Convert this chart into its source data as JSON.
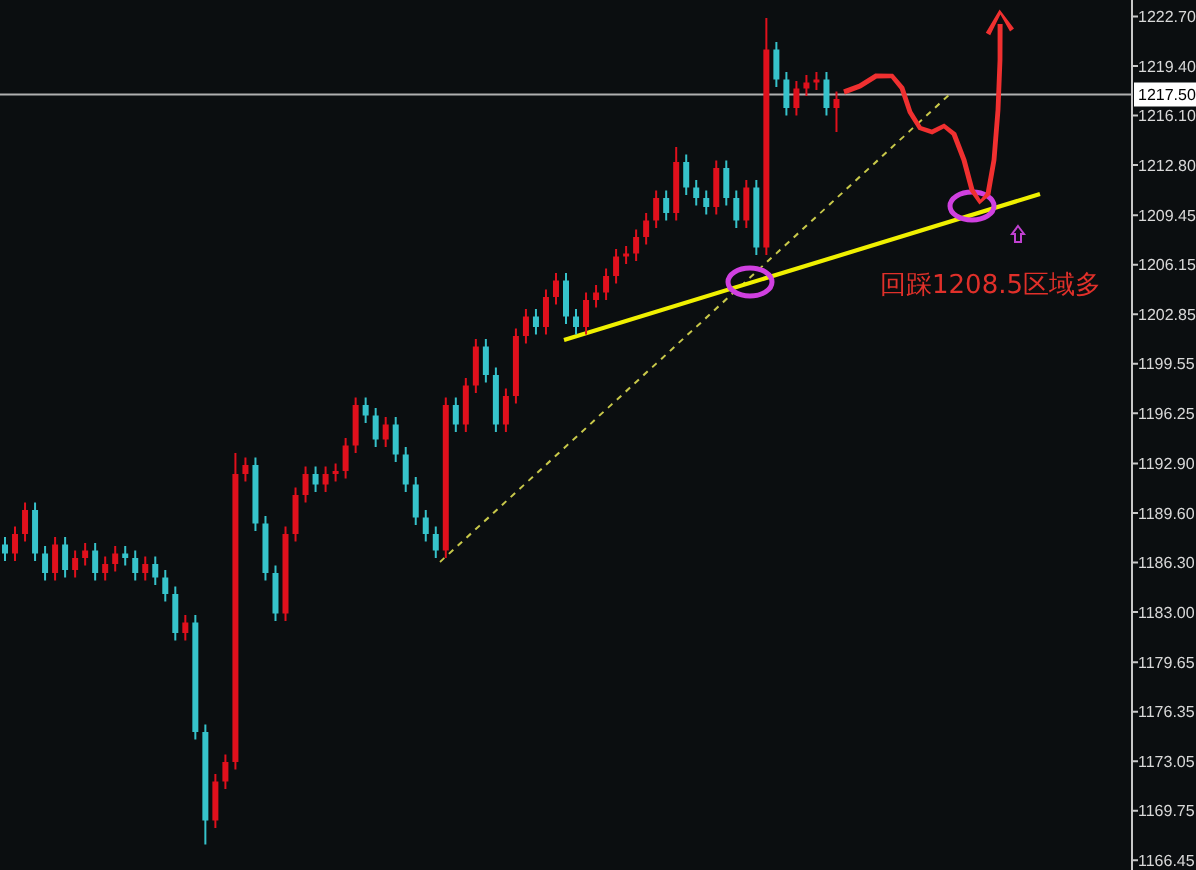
{
  "chart_data": {
    "type": "candlestick",
    "categories": [
      null,
      null,
      null,
      null,
      null,
      null,
      null,
      null,
      null,
      null,
      null,
      null,
      null,
      null,
      null,
      null,
      null,
      null,
      null,
      null,
      null,
      null,
      null,
      null,
      null,
      null,
      null,
      null,
      null,
      null,
      null,
      null,
      null,
      null,
      null,
      null,
      null,
      null,
      null,
      null,
      null,
      null,
      null,
      null,
      null,
      null,
      null,
      null,
      null,
      null,
      null,
      null,
      null,
      null,
      null,
      null,
      null,
      null,
      null,
      null,
      null,
      null,
      null,
      null,
      null,
      null,
      null,
      null,
      null,
      null,
      null,
      null,
      null,
      null,
      null,
      null,
      null,
      null,
      null,
      null,
      null,
      null,
      null,
      null,
      null,
      null,
      null,
      null,
      null,
      null,
      null,
      null,
      null,
      null,
      null,
      null,
      null,
      null,
      null,
      null,
      null,
      null,
      null,
      null,
      null,
      null,
      null,
      null,
      null,
      null,
      null,
      null,
      null
    ],
    "ohlc": [
      [
        1187.5,
        1188.0,
        1186.4,
        1186.9
      ],
      [
        1186.9,
        1188.7,
        1186.4,
        1188.2
      ],
      [
        1188.2,
        1190.3,
        1187.7,
        1189.8
      ],
      [
        1189.8,
        1190.3,
        1186.4,
        1186.9
      ],
      [
        1186.9,
        1187.4,
        1185.1,
        1185.6
      ],
      [
        1185.6,
        1188.0,
        1185.1,
        1187.5
      ],
      [
        1187.5,
        1188.0,
        1185.3,
        1185.8
      ],
      [
        1185.8,
        1187.1,
        1185.3,
        1186.6
      ],
      [
        1186.6,
        1187.6,
        1186.1,
        1187.1
      ],
      [
        1187.1,
        1187.6,
        1185.1,
        1185.6
      ],
      [
        1185.6,
        1186.7,
        1185.1,
        1186.2
      ],
      [
        1186.2,
        1187.4,
        1185.7,
        1186.9
      ],
      [
        1186.9,
        1187.4,
        1186.1,
        1186.6
      ],
      [
        1186.6,
        1187.1,
        1185.1,
        1185.6
      ],
      [
        1185.6,
        1186.7,
        1185.1,
        1186.2
      ],
      [
        1186.2,
        1186.7,
        1184.8,
        1185.3
      ],
      [
        1185.3,
        1185.8,
        1183.7,
        1184.2
      ],
      [
        1184.2,
        1184.7,
        1181.1,
        1181.6
      ],
      [
        1181.6,
        1182.8,
        1181.1,
        1182.3
      ],
      [
        1182.3,
        1182.8,
        1174.5,
        1175.0
      ],
      [
        1175.0,
        1175.5,
        1167.5,
        1169.1
      ],
      [
        1169.1,
        1172.2,
        1168.6,
        1171.7
      ],
      [
        1171.7,
        1173.5,
        1171.2,
        1173.0
      ],
      [
        1173.0,
        1193.6,
        1172.5,
        1192.2
      ],
      [
        1192.2,
        1193.3,
        1191.7,
        1192.8
      ],
      [
        1192.8,
        1193.3,
        1188.4,
        1188.9
      ],
      [
        1188.9,
        1189.4,
        1185.1,
        1185.6
      ],
      [
        1185.6,
        1186.1,
        1182.4,
        1182.9
      ],
      [
        1182.9,
        1188.7,
        1182.4,
        1188.2
      ],
      [
        1188.2,
        1191.3,
        1187.7,
        1190.8
      ],
      [
        1190.8,
        1192.7,
        1190.3,
        1192.2
      ],
      [
        1192.2,
        1192.7,
        1191.0,
        1191.5
      ],
      [
        1191.5,
        1192.7,
        1191.0,
        1192.2
      ],
      [
        1192.2,
        1192.9,
        1191.7,
        1192.4
      ],
      [
        1192.4,
        1194.6,
        1191.9,
        1194.1
      ],
      [
        1194.1,
        1197.3,
        1193.6,
        1196.8
      ],
      [
        1196.8,
        1197.3,
        1195.6,
        1196.1
      ],
      [
        1196.1,
        1196.6,
        1194.0,
        1194.5
      ],
      [
        1194.5,
        1196.0,
        1194.0,
        1195.5
      ],
      [
        1195.5,
        1196.0,
        1193.0,
        1193.5
      ],
      [
        1193.5,
        1194.0,
        1191.0,
        1191.5
      ],
      [
        1191.5,
        1192.0,
        1188.8,
        1189.3
      ],
      [
        1189.3,
        1189.8,
        1187.7,
        1188.2
      ],
      [
        1188.2,
        1188.7,
        1186.6,
        1187.1
      ],
      [
        1187.1,
        1197.3,
        1186.6,
        1196.8
      ],
      [
        1196.8,
        1197.3,
        1195.0,
        1195.5
      ],
      [
        1195.5,
        1198.6,
        1195.0,
        1198.1
      ],
      [
        1198.1,
        1201.2,
        1197.6,
        1200.7
      ],
      [
        1200.7,
        1201.2,
        1198.3,
        1198.8
      ],
      [
        1198.8,
        1199.3,
        1195.0,
        1195.5
      ],
      [
        1195.5,
        1197.9,
        1195.0,
        1197.4
      ],
      [
        1197.4,
        1201.9,
        1196.9,
        1201.4
      ],
      [
        1201.4,
        1203.2,
        1200.9,
        1202.7
      ],
      [
        1202.7,
        1203.2,
        1201.5,
        1202.0
      ],
      [
        1202.0,
        1204.5,
        1201.5,
        1204.0
      ],
      [
        1204.0,
        1205.6,
        1203.5,
        1205.1
      ],
      [
        1205.1,
        1205.6,
        1202.2,
        1202.7
      ],
      [
        1202.7,
        1203.2,
        1201.5,
        1202.0
      ],
      [
        1202.0,
        1204.3,
        1201.5,
        1203.8
      ],
      [
        1203.8,
        1204.8,
        1203.3,
        1204.3
      ],
      [
        1204.3,
        1205.9,
        1203.8,
        1205.4
      ],
      [
        1205.4,
        1207.2,
        1204.9,
        1206.7
      ],
      [
        1206.7,
        1207.4,
        1206.2,
        1206.9
      ],
      [
        1206.9,
        1208.5,
        1206.4,
        1208.0
      ],
      [
        1208.0,
        1209.6,
        1207.5,
        1209.1
      ],
      [
        1209.1,
        1211.1,
        1208.6,
        1210.6
      ],
      [
        1210.6,
        1211.1,
        1209.1,
        1209.6
      ],
      [
        1209.6,
        1214.0,
        1209.1,
        1213.0
      ],
      [
        1213.0,
        1213.5,
        1210.8,
        1211.3
      ],
      [
        1211.3,
        1211.8,
        1210.1,
        1210.6
      ],
      [
        1210.6,
        1211.1,
        1209.5,
        1210.0
      ],
      [
        1210.0,
        1213.1,
        1209.5,
        1212.6
      ],
      [
        1212.6,
        1213.1,
        1210.1,
        1210.6
      ],
      [
        1210.6,
        1211.1,
        1208.6,
        1209.1
      ],
      [
        1209.1,
        1211.8,
        1208.6,
        1211.3
      ],
      [
        1211.3,
        1211.8,
        1206.8,
        1207.3
      ],
      [
        1207.3,
        1222.6,
        1206.8,
        1220.5
      ],
      [
        1220.5,
        1221.0,
        1218.0,
        1218.5
      ],
      [
        1218.5,
        1219.0,
        1216.1,
        1216.6
      ],
      [
        1216.6,
        1218.4,
        1216.1,
        1217.9
      ],
      [
        1217.9,
        1218.8,
        1217.4,
        1218.3
      ],
      [
        1218.3,
        1219.0,
        1217.8,
        1218.5
      ],
      [
        1218.5,
        1219.0,
        1216.1,
        1216.6
      ],
      [
        1216.6,
        1217.7,
        1215.0,
        1217.2
      ],
      null,
      null,
      null,
      null,
      null,
      null,
      null,
      null,
      null,
      null,
      null,
      null,
      null,
      null,
      null,
      null,
      null,
      null,
      null,
      null,
      null,
      null,
      null,
      null,
      null,
      null,
      null,
      null,
      null
    ],
    "colors": [
      "#36c3cb",
      "#e0101c",
      "#e0101c",
      "#36c3cb",
      "#36c3cb",
      "#e0101c",
      "#36c3cb",
      "#e0101c",
      "#e0101c",
      "#36c3cb",
      "#e0101c",
      "#e0101c",
      "#36c3cb",
      "#36c3cb",
      "#e0101c",
      "#36c3cb",
      "#36c3cb",
      "#36c3cb",
      "#e0101c",
      "#36c3cb",
      "#36c3cb",
      "#e0101c",
      "#e0101c",
      "#e0101c",
      "#e0101c",
      "#36c3cb",
      "#36c3cb",
      "#36c3cb",
      "#e0101c",
      "#e0101c",
      "#e0101c",
      "#36c3cb",
      "#e0101c",
      "#e0101c",
      "#e0101c",
      "#e0101c",
      "#36c3cb",
      "#36c3cb",
      "#e0101c",
      "#36c3cb",
      "#36c3cb",
      "#36c3cb",
      "#36c3cb",
      "#36c3cb",
      "#e0101c",
      "#36c3cb",
      "#e0101c",
      "#e0101c",
      "#36c3cb",
      "#36c3cb",
      "#e0101c",
      "#e0101c",
      "#e0101c",
      "#36c3cb",
      "#e0101c",
      "#e0101c",
      "#36c3cb",
      "#36c3cb",
      "#e0101c",
      "#e0101c",
      "#e0101c",
      "#e0101c",
      "#e0101c",
      "#e0101c",
      "#e0101c",
      "#e0101c",
      "#36c3cb",
      "#e0101c",
      "#36c3cb",
      "#36c3cb",
      "#36c3cb",
      "#e0101c",
      "#36c3cb",
      "#36c3cb",
      "#e0101c",
      "#36c3cb",
      "#e0101c",
      "#36c3cb",
      "#36c3cb",
      "#e0101c",
      "#e0101c",
      "#e0101c",
      "#36c3cb",
      "#e0101c",
      null,
      null,
      null,
      null,
      null,
      null,
      null,
      null,
      null,
      null,
      null,
      null,
      null,
      null,
      null,
      null,
      null,
      null,
      null,
      null,
      null,
      null,
      null,
      null,
      null,
      null,
      null,
      null,
      null
    ],
    "ylim": [
      1165.8,
      1223.8
    ],
    "yticks": [
      {
        "value": 1222.7,
        "label": "1222.70"
      },
      {
        "value": 1219.4,
        "label": "1219.40"
      },
      {
        "value": 1216.1,
        "label": "1216.10"
      },
      {
        "value": 1212.8,
        "label": "1212.80"
      },
      {
        "value": 1209.45,
        "label": "1209.45"
      },
      {
        "value": 1206.15,
        "label": "1206.15"
      },
      {
        "value": 1202.85,
        "label": "1202.85"
      },
      {
        "value": 1199.55,
        "label": "1199.55"
      },
      {
        "value": 1196.25,
        "label": "1196.25"
      },
      {
        "value": 1192.9,
        "label": "1192.90"
      },
      {
        "value": 1189.6,
        "label": "1189.60"
      },
      {
        "value": 1186.3,
        "label": "1186.30"
      },
      {
        "value": 1183,
        "label": "1183.00"
      },
      {
        "value": 1179.65,
        "label": "1179.65"
      },
      {
        "value": 1176.35,
        "label": "1176.35"
      },
      {
        "value": 1173.05,
        "label": "1173.05"
      },
      {
        "value": 1169.75,
        "label": "1169.75"
      },
      {
        "value": 1166.45,
        "label": "1166.45"
      }
    ],
    "tick_labels": "y",
    "ref_lines": [
      {
        "axis": "y",
        "value": 1217.5,
        "label": "1217.50",
        "color": "#b0b0b0"
      }
    ],
    "annotations": [
      "回踩1208.5区域多"
    ]
  }
}
